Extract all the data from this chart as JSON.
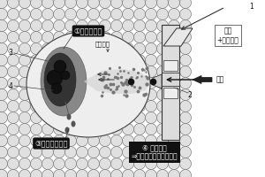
{
  "labels": {
    "label1": "①一部分还原",
    "label2": "③熔渣粘度降低",
    "label3": "④ 快速滴下\n⇒抑制生长（通风改善）",
    "label4": "微粉矿石",
    "label5": "粉燤\n+微粉矿石",
    "label6": "鼓风",
    "num1": "1",
    "num2": "2",
    "num3": "3",
    "num4": "4"
  }
}
